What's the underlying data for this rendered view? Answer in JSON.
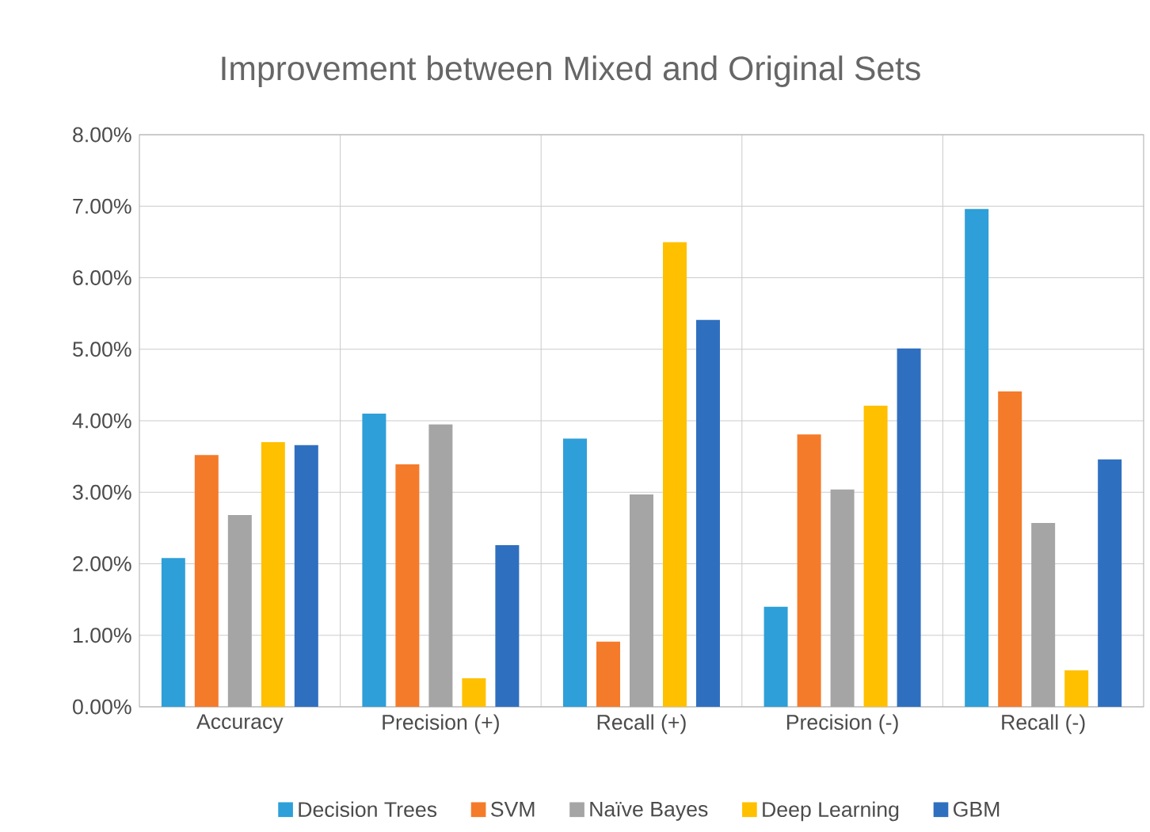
{
  "chart_data": {
    "type": "bar",
    "title": "Improvement between Mixed and Original Sets",
    "categories": [
      "Accuracy",
      "Precision (+)",
      "Recall (+)",
      "Precision (-)",
      "Recall (-)"
    ],
    "series": [
      {
        "name": "Decision Trees",
        "color": "#2e9fd8",
        "values": [
          2.08,
          4.1,
          3.75,
          1.4,
          6.96
        ]
      },
      {
        "name": "SVM",
        "color": "#f47b2a",
        "values": [
          3.52,
          3.39,
          0.91,
          3.81,
          4.41
        ]
      },
      {
        "name": "Naïve Bayes",
        "color": "#a5a5a5",
        "values": [
          2.68,
          3.95,
          2.97,
          3.04,
          2.57
        ]
      },
      {
        "name": "Deep Learning",
        "color": "#ffc000",
        "values": [
          3.7,
          0.4,
          6.5,
          4.21,
          0.51
        ]
      },
      {
        "name": "GBM",
        "color": "#2f6fbf",
        "values": [
          3.66,
          2.26,
          5.41,
          5.01,
          3.46
        ]
      }
    ],
    "ylim": [
      0,
      8
    ],
    "yticks": [
      {
        "value": 0,
        "label": "0.00%"
      },
      {
        "value": 1,
        "label": "1.00%"
      },
      {
        "value": 2,
        "label": "2.00%"
      },
      {
        "value": 3,
        "label": "3.00%"
      },
      {
        "value": 4,
        "label": "4.00%"
      },
      {
        "value": 5,
        "label": "5.00%"
      },
      {
        "value": 6,
        "label": "6.00%"
      },
      {
        "value": 7,
        "label": "7.00%"
      },
      {
        "value": 8,
        "label": "8.00%"
      }
    ],
    "grid": true,
    "legend": "bottom"
  }
}
